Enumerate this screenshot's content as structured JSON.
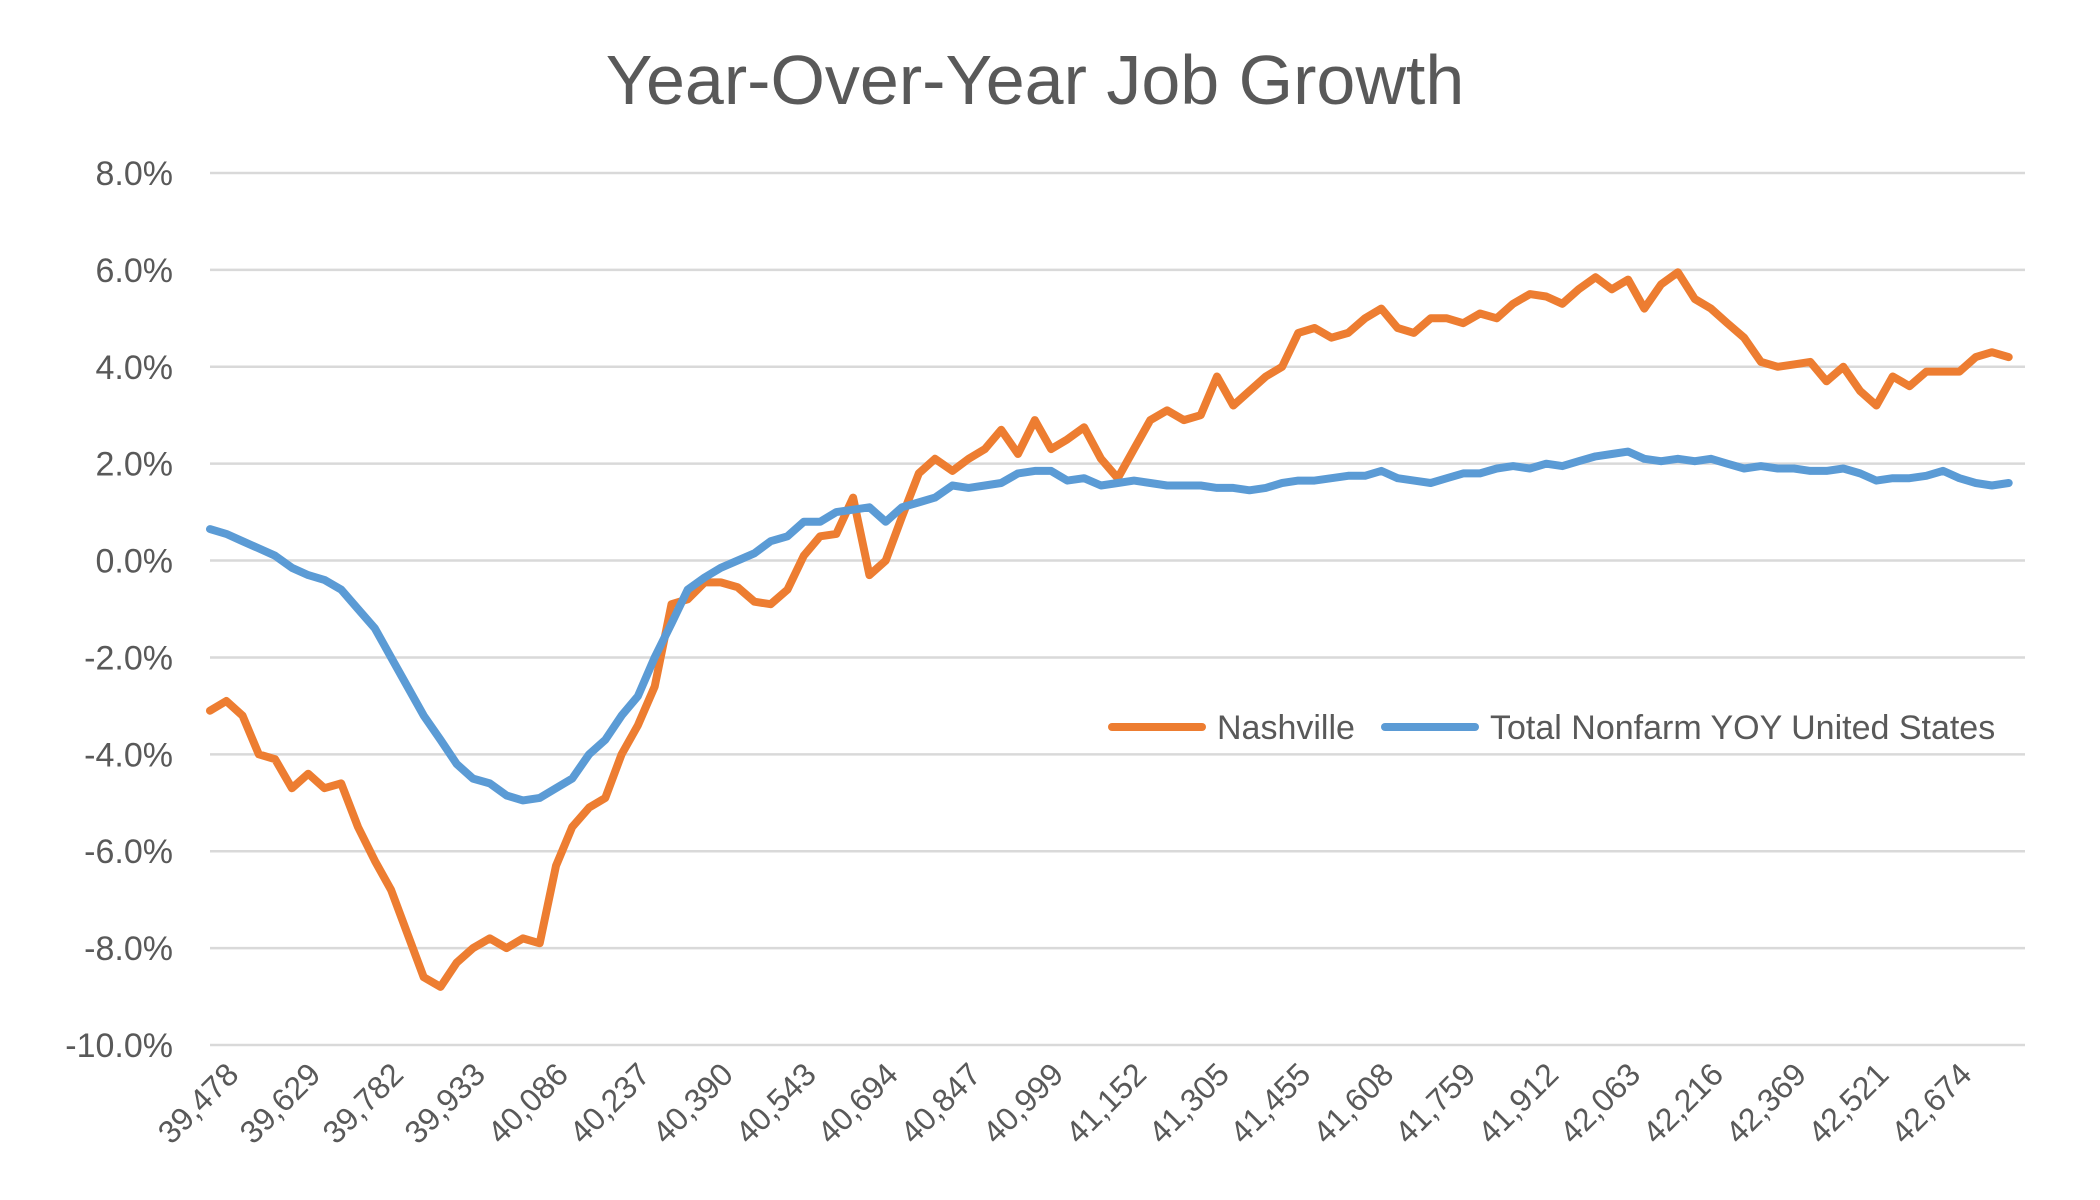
{
  "chart_data": {
    "type": "line",
    "title": "Year-Over-Year Job Growth",
    "xlabel": "",
    "ylabel": "",
    "ylim": [
      -0.1,
      0.08
    ],
    "y_ticks": [
      0.08,
      0.06,
      0.04,
      0.02,
      0.0,
      -0.02,
      -0.04,
      -0.06,
      -0.08,
      -0.1
    ],
    "y_tick_labels": [
      "8.0%",
      "6.0%",
      "4.0%",
      "2.0%",
      "0.0%",
      "-2.0%",
      "-4.0%",
      "-6.0%",
      "-8.0%",
      "-10.0%"
    ],
    "x_tick_labels": [
      "39,478",
      "39,629",
      "39,782",
      "39,933",
      "40,086",
      "40,237",
      "40,390",
      "40,543",
      "40,694",
      "40,847",
      "40,999",
      "41,152",
      "41,305",
      "41,455",
      "41,608",
      "41,759",
      "41,912",
      "42,063",
      "42,216",
      "42,369",
      "42,521",
      "42,674"
    ],
    "x_ticks": [
      39478,
      39629,
      39782,
      39933,
      40086,
      40237,
      40390,
      40543,
      40694,
      40847,
      40999,
      41152,
      41305,
      41455,
      41608,
      41759,
      41912,
      42063,
      42216,
      42369,
      42521,
      42674
    ],
    "xlim": [
      39478,
      42825
    ],
    "grid": true,
    "legend_position": "right-middle",
    "colors": {
      "Nashville": "#ED7D31",
      "Total Nonfarm YOY United States": "#5B9BD5",
      "grid": "#d9d9d9",
      "text": "#595959",
      "title": "#595959"
    },
    "series": [
      {
        "name": "Nashville",
        "color": "#ED7D31",
        "points": [
          [
            39478,
            -0.031
          ],
          [
            39508,
            -0.029
          ],
          [
            39538,
            -0.032
          ],
          [
            39568,
            -0.04
          ],
          [
            39598,
            -0.041
          ],
          [
            39629,
            -0.047
          ],
          [
            39659,
            -0.044
          ],
          [
            39689,
            -0.047
          ],
          [
            39720,
            -0.046
          ],
          [
            39751,
            -0.055
          ],
          [
            39782,
            -0.062
          ],
          [
            39812,
            -0.068
          ],
          [
            39842,
            -0.077
          ],
          [
            39872,
            -0.086
          ],
          [
            39903,
            -0.088
          ],
          [
            39933,
            -0.083
          ],
          [
            39963,
            -0.08
          ],
          [
            39994,
            -0.078
          ],
          [
            40025,
            -0.08
          ],
          [
            40055,
            -0.078
          ],
          [
            40086,
            -0.079
          ],
          [
            40116,
            -0.063
          ],
          [
            40146,
            -0.055
          ],
          [
            40177,
            -0.051
          ],
          [
            40207,
            -0.049
          ],
          [
            40237,
            -0.04
          ],
          [
            40267,
            -0.034
          ],
          [
            40298,
            -0.026
          ],
          [
            40329,
            -0.009
          ],
          [
            40359,
            -0.008
          ],
          [
            40390,
            -0.0045
          ],
          [
            40420,
            -0.0045
          ],
          [
            40451,
            -0.0055
          ],
          [
            40482,
            -0.0085
          ],
          [
            40512,
            -0.009
          ],
          [
            40543,
            -0.006
          ],
          [
            40573,
            0.001
          ],
          [
            40603,
            0.005
          ],
          [
            40633,
            0.0055
          ],
          [
            40664,
            0.013
          ],
          [
            40694,
            -0.003
          ],
          [
            40724,
            0.0
          ],
          [
            40754,
            0.009
          ],
          [
            40785,
            0.018
          ],
          [
            40815,
            0.021
          ],
          [
            40847,
            0.0185
          ],
          [
            40877,
            0.021
          ],
          [
            40907,
            0.023
          ],
          [
            40937,
            0.027
          ],
          [
            40968,
            0.022
          ],
          [
            40999,
            0.029
          ],
          [
            41029,
            0.023
          ],
          [
            41059,
            0.025
          ],
          [
            41090,
            0.0275
          ],
          [
            41121,
            0.021
          ],
          [
            41152,
            0.017
          ],
          [
            41182,
            0.023
          ],
          [
            41212,
            0.029
          ],
          [
            41243,
            0.031
          ],
          [
            41274,
            0.029
          ],
          [
            41305,
            0.03
          ],
          [
            41335,
            0.038
          ],
          [
            41365,
            0.032
          ],
          [
            41395,
            0.035
          ],
          [
            41425,
            0.038
          ],
          [
            41455,
            0.04
          ],
          [
            41485,
            0.047
          ],
          [
            41515,
            0.048
          ],
          [
            41546,
            0.046
          ],
          [
            41577,
            0.047
          ],
          [
            41608,
            0.05
          ],
          [
            41638,
            0.052
          ],
          [
            41668,
            0.048
          ],
          [
            41698,
            0.047
          ],
          [
            41729,
            0.05
          ],
          [
            41759,
            0.05
          ],
          [
            41789,
            0.049
          ],
          [
            41820,
            0.051
          ],
          [
            41851,
            0.05
          ],
          [
            41881,
            0.053
          ],
          [
            41912,
            0.055
          ],
          [
            41942,
            0.0545
          ],
          [
            41972,
            0.053
          ],
          [
            42002,
            0.056
          ],
          [
            42033,
            0.0585
          ],
          [
            42063,
            0.056
          ],
          [
            42093,
            0.058
          ],
          [
            42123,
            0.052
          ],
          [
            42154,
            0.057
          ],
          [
            42185,
            0.0595
          ],
          [
            42216,
            0.054
          ],
          [
            42246,
            0.052
          ],
          [
            42276,
            0.049
          ],
          [
            42307,
            0.046
          ],
          [
            42338,
            0.041
          ],
          [
            42369,
            0.04
          ],
          [
            42399,
            0.0405
          ],
          [
            42429,
            0.041
          ],
          [
            42459,
            0.037
          ],
          [
            42490,
            0.04
          ],
          [
            42521,
            0.035
          ],
          [
            42551,
            0.032
          ],
          [
            42581,
            0.038
          ],
          [
            42612,
            0.036
          ],
          [
            42643,
            0.039
          ],
          [
            42674,
            0.039
          ],
          [
            42704,
            0.039
          ],
          [
            42734,
            0.042
          ],
          [
            42764,
            0.043
          ],
          [
            42795,
            0.042
          ]
        ]
      },
      {
        "name": "Total Nonfarm YOY United States",
        "color": "#5B9BD5",
        "points": [
          [
            39478,
            0.0065
          ],
          [
            39508,
            0.0055
          ],
          [
            39538,
            0.004
          ],
          [
            39568,
            0.0025
          ],
          [
            39598,
            0.001
          ],
          [
            39629,
            -0.0015
          ],
          [
            39659,
            -0.003
          ],
          [
            39689,
            -0.004
          ],
          [
            39720,
            -0.006
          ],
          [
            39751,
            -0.01
          ],
          [
            39782,
            -0.014
          ],
          [
            39812,
            -0.02
          ],
          [
            39842,
            -0.026
          ],
          [
            39872,
            -0.032
          ],
          [
            39903,
            -0.037
          ],
          [
            39933,
            -0.042
          ],
          [
            39963,
            -0.045
          ],
          [
            39994,
            -0.046
          ],
          [
            40025,
            -0.0485
          ],
          [
            40055,
            -0.0495
          ],
          [
            40086,
            -0.049
          ],
          [
            40116,
            -0.047
          ],
          [
            40146,
            -0.045
          ],
          [
            40177,
            -0.04
          ],
          [
            40207,
            -0.037
          ],
          [
            40237,
            -0.032
          ],
          [
            40267,
            -0.028
          ],
          [
            40298,
            -0.02
          ],
          [
            40329,
            -0.013
          ],
          [
            40359,
            -0.006
          ],
          [
            40390,
            -0.0035
          ],
          [
            40420,
            -0.0015
          ],
          [
            40451,
            0.0
          ],
          [
            40482,
            0.0015
          ],
          [
            40512,
            0.004
          ],
          [
            40543,
            0.005
          ],
          [
            40573,
            0.008
          ],
          [
            40603,
            0.008
          ],
          [
            40633,
            0.01
          ],
          [
            40664,
            0.0105
          ],
          [
            40694,
            0.011
          ],
          [
            40724,
            0.008
          ],
          [
            40754,
            0.011
          ],
          [
            40785,
            0.012
          ],
          [
            40815,
            0.013
          ],
          [
            40847,
            0.0155
          ],
          [
            40877,
            0.015
          ],
          [
            40907,
            0.0155
          ],
          [
            40937,
            0.016
          ],
          [
            40968,
            0.018
          ],
          [
            40999,
            0.0185
          ],
          [
            41029,
            0.0185
          ],
          [
            41059,
            0.0165
          ],
          [
            41090,
            0.017
          ],
          [
            41121,
            0.0155
          ],
          [
            41152,
            0.016
          ],
          [
            41182,
            0.0165
          ],
          [
            41212,
            0.016
          ],
          [
            41243,
            0.0155
          ],
          [
            41274,
            0.0155
          ],
          [
            41305,
            0.0155
          ],
          [
            41335,
            0.015
          ],
          [
            41365,
            0.015
          ],
          [
            41395,
            0.0145
          ],
          [
            41425,
            0.015
          ],
          [
            41455,
            0.016
          ],
          [
            41485,
            0.0165
          ],
          [
            41515,
            0.0165
          ],
          [
            41546,
            0.017
          ],
          [
            41577,
            0.0175
          ],
          [
            41608,
            0.0175
          ],
          [
            41638,
            0.0185
          ],
          [
            41668,
            0.017
          ],
          [
            41698,
            0.0165
          ],
          [
            41729,
            0.016
          ],
          [
            41759,
            0.017
          ],
          [
            41789,
            0.018
          ],
          [
            41820,
            0.018
          ],
          [
            41851,
            0.019
          ],
          [
            41881,
            0.0195
          ],
          [
            41912,
            0.019
          ],
          [
            41942,
            0.02
          ],
          [
            41972,
            0.0195
          ],
          [
            42002,
            0.0205
          ],
          [
            42033,
            0.0215
          ],
          [
            42063,
            0.022
          ],
          [
            42093,
            0.0225
          ],
          [
            42123,
            0.021
          ],
          [
            42154,
            0.0205
          ],
          [
            42185,
            0.021
          ],
          [
            42216,
            0.0205
          ],
          [
            42246,
            0.021
          ],
          [
            42276,
            0.02
          ],
          [
            42307,
            0.019
          ],
          [
            42338,
            0.0195
          ],
          [
            42369,
            0.019
          ],
          [
            42399,
            0.019
          ],
          [
            42429,
            0.0185
          ],
          [
            42459,
            0.0185
          ],
          [
            42490,
            0.019
          ],
          [
            42521,
            0.018
          ],
          [
            42551,
            0.0165
          ],
          [
            42581,
            0.017
          ],
          [
            42612,
            0.017
          ],
          [
            42643,
            0.0175
          ],
          [
            42674,
            0.0185
          ],
          [
            42704,
            0.017
          ],
          [
            42734,
            0.016
          ],
          [
            42764,
            0.0155
          ],
          [
            42795,
            0.016
          ]
        ]
      }
    ],
    "legend": [
      {
        "label": "Nashville",
        "color": "#ED7D31"
      },
      {
        "label": "Total Nonfarm YOY United States",
        "color": "#5B9BD5"
      }
    ]
  }
}
